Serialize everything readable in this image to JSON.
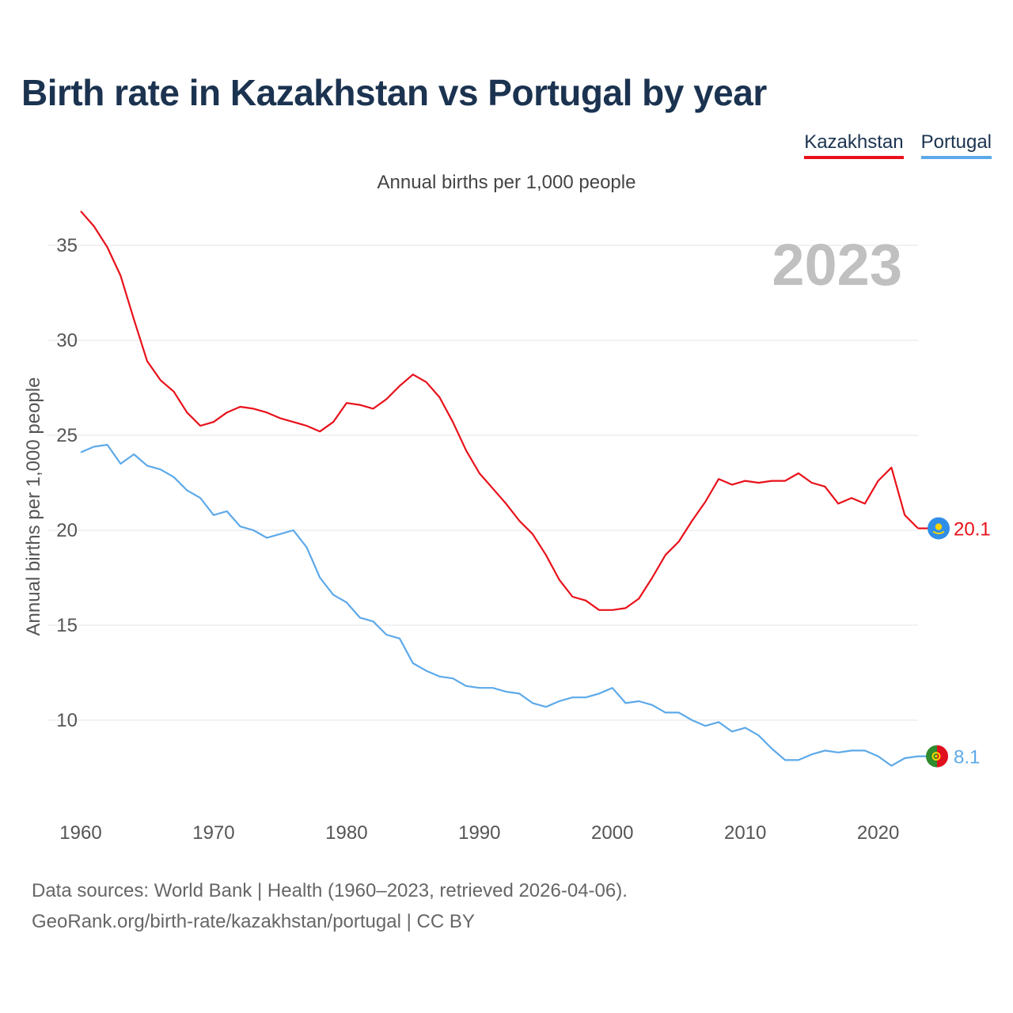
{
  "title": "Birth rate in Kazakhstan vs Portugal by year",
  "subtitle": "Annual births per 1,000 people",
  "footer": {
    "line1": "Data sources: World Bank | Health (1960–2023, retrieved 2026-04-06).",
    "line2": "GeoRank.org/birth-rate/kazakhstan/portugal | CC BY"
  },
  "chart_data": {
    "type": "line",
    "title": "Birth rate in Kazakhstan vs Portugal by year",
    "ylabel": "Annual births per 1,000 people",
    "xlabel": "",
    "year_label": "2023",
    "xlim": [
      1960,
      2023
    ],
    "ylim": [
      5,
      38
    ],
    "yticks": [
      10,
      15,
      20,
      25,
      30,
      35
    ],
    "xticks": [
      1960,
      1970,
      1980,
      1990,
      2000,
      2010,
      2020
    ],
    "grid": true,
    "legend_position": "top-right",
    "x": [
      1960,
      1961,
      1962,
      1963,
      1964,
      1965,
      1966,
      1967,
      1968,
      1969,
      1970,
      1971,
      1972,
      1973,
      1974,
      1975,
      1976,
      1977,
      1978,
      1979,
      1980,
      1981,
      1982,
      1983,
      1984,
      1985,
      1986,
      1987,
      1988,
      1989,
      1990,
      1991,
      1992,
      1993,
      1994,
      1995,
      1996,
      1997,
      1998,
      1999,
      2000,
      2001,
      2002,
      2003,
      2004,
      2005,
      2006,
      2007,
      2008,
      2009,
      2010,
      2011,
      2012,
      2013,
      2014,
      2015,
      2016,
      2017,
      2018,
      2019,
      2020,
      2021,
      2022,
      2023
    ],
    "series": [
      {
        "name": "Kazakhstan",
        "color": "#e8111a",
        "end_label": "20.1",
        "flag": "kazakhstan-flag",
        "values": [
          36.8,
          36.0,
          34.9,
          33.4,
          31.1,
          28.9,
          27.9,
          27.3,
          26.2,
          25.5,
          25.7,
          26.2,
          26.5,
          26.4,
          26.2,
          25.9,
          25.7,
          25.5,
          25.2,
          25.7,
          26.7,
          26.6,
          26.4,
          26.9,
          27.6,
          28.2,
          27.8,
          27.0,
          25.7,
          24.2,
          23.0,
          22.2,
          21.4,
          20.5,
          19.8,
          18.7,
          17.4,
          16.5,
          16.3,
          15.8,
          15.8,
          15.9,
          16.4,
          17.5,
          18.7,
          19.4,
          20.5,
          21.5,
          22.7,
          22.4,
          22.6,
          22.5,
          22.6,
          22.6,
          23.0,
          22.5,
          22.3,
          21.4,
          21.7,
          21.4,
          22.6,
          23.3,
          20.8,
          20.1
        ]
      },
      {
        "name": "Portugal",
        "color": "#5da9e9",
        "end_label": "8.1",
        "flag": "portugal-flag",
        "values": [
          24.1,
          24.4,
          24.5,
          23.5,
          24.0,
          23.4,
          23.2,
          22.8,
          22.1,
          21.7,
          20.8,
          21.0,
          20.2,
          20.0,
          19.6,
          19.8,
          20.0,
          19.1,
          17.5,
          16.6,
          16.2,
          15.4,
          15.2,
          14.5,
          14.3,
          13.0,
          12.6,
          12.3,
          12.2,
          11.8,
          11.7,
          11.7,
          11.5,
          11.4,
          10.9,
          10.7,
          11.0,
          11.2,
          11.2,
          11.4,
          11.7,
          10.9,
          11.0,
          10.8,
          10.4,
          10.4,
          10.0,
          9.7,
          9.9,
          9.4,
          9.6,
          9.2,
          8.5,
          7.9,
          7.9,
          8.2,
          8.4,
          8.3,
          8.4,
          8.4,
          8.1,
          7.6,
          8.0,
          8.1
        ]
      }
    ]
  }
}
